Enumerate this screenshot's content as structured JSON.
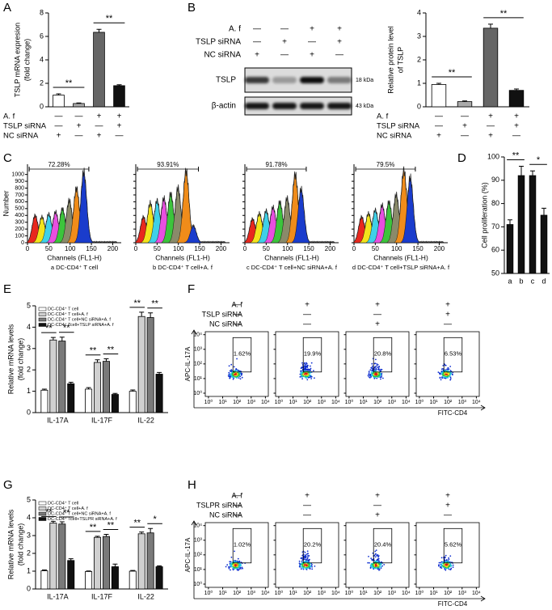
{
  "panel_labels": [
    "A",
    "B",
    "C",
    "D",
    "E",
    "F",
    "G",
    "H"
  ],
  "chart_data": [
    {
      "type": "bar",
      "y_label": [
        "TSLP mRNA expresion",
        "(fold change)"
      ],
      "values": [
        1.0,
        0.28,
        6.35,
        1.8
      ],
      "errors": [
        0.1,
        0.05,
        0.25,
        0.08
      ],
      "colors": [
        "#ffffff",
        "#aaaaaa",
        "#666666",
        "#111111"
      ],
      "ylim": [
        0,
        8
      ],
      "yticks": [
        0,
        2,
        4,
        6,
        8
      ],
      "significance": [
        "**",
        "**"
      ],
      "conditions": [
        {
          "label": "A. f",
          "signs": [
            "—",
            "—",
            "+",
            "+"
          ]
        },
        {
          "label": "TSLP siRNA",
          "signs": [
            "—",
            "+",
            "—",
            "+"
          ]
        },
        {
          "label": "NC siRNA",
          "signs": [
            "+",
            "—",
            "+",
            "—"
          ]
        }
      ]
    },
    {
      "type": "bar",
      "y_label": [
        "Relative protein level",
        "of TSLP"
      ],
      "values": [
        0.95,
        0.22,
        3.35,
        0.7
      ],
      "errors": [
        0.05,
        0.03,
        0.17,
        0.06
      ],
      "colors": [
        "#ffffff",
        "#aaaaaa",
        "#666666",
        "#111111"
      ],
      "ylim": [
        0,
        4
      ],
      "yticks": [
        0,
        1,
        2,
        3,
        4
      ],
      "significance": [
        "**",
        "**"
      ],
      "conditions": [
        {
          "label": "A. f",
          "signs": [
            "—",
            "—",
            "+",
            "+"
          ]
        },
        {
          "label": "TSLP siRNA",
          "signs": [
            "—",
            "+",
            "—",
            "+"
          ]
        },
        {
          "label": "NC siRNA",
          "signs": [
            "+",
            "—",
            "+",
            "—"
          ]
        }
      ]
    },
    {
      "type": "bar",
      "y_label": [
        "Cell proliferation (%)"
      ],
      "categories": [
        "a",
        "b",
        "c",
        "d"
      ],
      "values": [
        71,
        92,
        92,
        75
      ],
      "errors": [
        2,
        4,
        2,
        3
      ],
      "color": "#111111",
      "ylim": [
        50,
        100
      ],
      "yticks": [
        50,
        60,
        70,
        80,
        90,
        100
      ],
      "significance": [
        "**",
        "*"
      ]
    },
    {
      "type": "bar",
      "y_label": [
        "Relative mRNA levels",
        "(fold change)"
      ],
      "categories": [
        "IL-17A",
        "IL-17F",
        "IL-22"
      ],
      "series": [
        {
          "name": "DC-CD4⁺ T cell",
          "color": "#ffffff",
          "values": [
            1.05,
            1.1,
            1.0
          ],
          "errors": [
            0.05,
            0.07,
            0.06
          ]
        },
        {
          "name": "DC-CD4⁺ T cell+A. f",
          "color": "#d0d0d0",
          "values": [
            3.4,
            2.35,
            4.5
          ],
          "errors": [
            0.12,
            0.12,
            0.2
          ]
        },
        {
          "name": "DC-CD4⁺ T cell+NC siRNA+A. f",
          "color": "#7a7a7a",
          "values": [
            3.35,
            2.4,
            4.45
          ],
          "errors": [
            0.18,
            0.12,
            0.22
          ]
        },
        {
          "name": "DC-CD4⁺ Tcell+TSLP siRNA+A. f",
          "color": "#111111",
          "values": [
            1.35,
            0.85,
            1.8
          ],
          "errors": [
            0.07,
            0.05,
            0.08
          ]
        }
      ],
      "ylim": [
        0,
        5
      ],
      "yticks": [
        0,
        1,
        2,
        3,
        4,
        5
      ],
      "significance": [
        [
          "**",
          "**"
        ],
        [
          "**",
          "**"
        ],
        [
          "**",
          "**"
        ]
      ]
    },
    {
      "type": "bar",
      "y_label": [
        "Relative mRNA levels",
        "(fold change)"
      ],
      "categories": [
        "IL-17A",
        "IL-17F",
        "IL-22"
      ],
      "series": [
        {
          "name": "DC-CD4⁺ T cell",
          "color": "#ffffff",
          "values": [
            1.02,
            0.98,
            1.0
          ],
          "errors": [
            0.05,
            0.03,
            0.04
          ]
        },
        {
          "name": "DC-CD4⁺ T cell+A. f",
          "color": "#d0d0d0",
          "values": [
            3.7,
            2.9,
            3.1
          ],
          "errors": [
            0.1,
            0.06,
            0.1
          ]
        },
        {
          "name": "DC-CD4⁺ T cell+NC siRNA+A. f",
          "color": "#7a7a7a",
          "values": [
            3.65,
            2.95,
            3.15
          ],
          "errors": [
            0.12,
            0.12,
            0.25
          ]
        },
        {
          "name": "DC-CD4⁺ Tcell+TSLPR siRNA+A. f",
          "color": "#111111",
          "values": [
            1.6,
            1.25,
            1.25
          ],
          "errors": [
            0.1,
            0.15,
            0.05
          ]
        }
      ],
      "ylim": [
        0,
        5
      ],
      "yticks": [
        0,
        1,
        2,
        3,
        4,
        5
      ],
      "significance": [
        [
          "**",
          "**"
        ],
        [
          "**",
          "**"
        ],
        [
          "**",
          "*"
        ]
      ]
    }
  ],
  "blot": {
    "conditions": [
      {
        "label": "A. f",
        "signs": [
          "—",
          "—",
          "+",
          "+"
        ]
      },
      {
        "label": "TSLP siRNA",
        "signs": [
          "—",
          "+",
          "—",
          "+"
        ]
      },
      {
        "label": "NC siRNA",
        "signs": [
          "+",
          "—",
          "+",
          "—"
        ]
      }
    ],
    "rows": [
      {
        "label": "TSLP",
        "size": "18 kDa",
        "intensity": [
          0.75,
          0.3,
          0.95,
          0.45
        ]
      },
      {
        "label": "β-actin",
        "size": "43 kDa",
        "intensity": [
          0.9,
          0.9,
          0.9,
          0.9
        ]
      }
    ]
  },
  "panel_c": {
    "x_label": "Channels (FL1-H)",
    "y_label": "Number",
    "xlim": [
      0,
      220
    ],
    "ylim": [
      0,
      1150
    ],
    "xticks": [
      0,
      50,
      100,
      150,
      200
    ],
    "yticks": [
      0,
      100,
      200,
      300,
      400,
      500,
      600,
      700,
      800,
      900,
      1000
    ],
    "peak_colors": [
      "#e8281e",
      "#f2e41c",
      "#3fd0e8",
      "#e84fe0",
      "#3cc43c",
      "#8a8a6a",
      "#f08c1a",
      "#1a3ccc"
    ],
    "plots": [
      {
        "caption": "a DC-CD4⁺ T cell",
        "gate_label": "72.28%",
        "peak_channels": [
          18,
          34,
          50,
          66,
          82,
          98,
          115,
          132
        ],
        "peaks": [
          400,
          380,
          420,
          450,
          500,
          620,
          800,
          1030
        ]
      },
      {
        "caption": "b DC-CD4⁺ T cell+A. f",
        "gate_label": "93.91%",
        "peak_channels": [
          18,
          34,
          50,
          66,
          82,
          99,
          118,
          135
        ],
        "peaks": [
          380,
          580,
          620,
          650,
          720,
          800,
          1050,
          250
        ]
      },
      {
        "caption": "c DC-CD4⁺ T cell+NC siRNA+A. f",
        "gate_label": "91.78%",
        "peak_channels": [
          18,
          34,
          50,
          66,
          82,
          99,
          118,
          132
        ],
        "peaks": [
          350,
          430,
          470,
          520,
          600,
          650,
          1000,
          780
        ]
      },
      {
        "caption": "d DC-CD4⁺ T cell+TSLP siRNA+A. f",
        "gate_label": "79.5%",
        "peak_channels": [
          18,
          34,
          50,
          66,
          82,
          99,
          117,
          132
        ],
        "peaks": [
          380,
          430,
          480,
          550,
          600,
          700,
          1060,
          950
        ]
      }
    ]
  },
  "panel_f": {
    "conditions": [
      {
        "label": "A. f",
        "signs": [
          "—",
          "+",
          "+",
          "+"
        ]
      },
      {
        "label": "TSLP siRNA",
        "signs": [
          "—",
          "—",
          "—",
          "+"
        ]
      },
      {
        "label": "NC siRNA",
        "signs": [
          "—",
          "—",
          "+",
          "—"
        ]
      }
    ],
    "y_label": "APC-IL-17A",
    "x_label": "FITC-CD4",
    "log": true,
    "xlim": [
      0.6,
      16000
    ],
    "ylim": [
      0.6,
      16000
    ],
    "ticks": [
      {
        "value": 1,
        "label": "10⁰"
      },
      {
        "value": 10,
        "label": "10¹"
      },
      {
        "value": 100,
        "label": "10²"
      },
      {
        "value": 1000,
        "label": "10³"
      },
      {
        "value": 10000,
        "label": "10⁴"
      }
    ],
    "gate_labels": [
      "1.62%",
      "19.9%",
      "20.8%",
      "6.53%"
    ]
  },
  "panel_h": {
    "conditions": [
      {
        "label": "A. f",
        "signs": [
          "—",
          "+",
          "+",
          "+"
        ]
      },
      {
        "label": "TSLPR siRNA",
        "signs": [
          "—",
          "—",
          "—",
          "+"
        ]
      },
      {
        "label": "NC siRNA",
        "signs": [
          "—",
          "—",
          "+",
          "—"
        ]
      }
    ],
    "y_label": "APC-IL-17A",
    "x_label": "FITC-CD4",
    "log": true,
    "xlim": [
      0.6,
      16000
    ],
    "ylim": [
      0.6,
      16000
    ],
    "ticks": [
      {
        "value": 1,
        "label": "10⁰"
      },
      {
        "value": 10,
        "label": "10¹"
      },
      {
        "value": 100,
        "label": "10²"
      },
      {
        "value": 1000,
        "label": "10³"
      },
      {
        "value": 10000,
        "label": "10⁴"
      }
    ],
    "gate_labels": [
      "1.02%",
      "20.2%",
      "20.4%",
      "5.62%"
    ]
  }
}
